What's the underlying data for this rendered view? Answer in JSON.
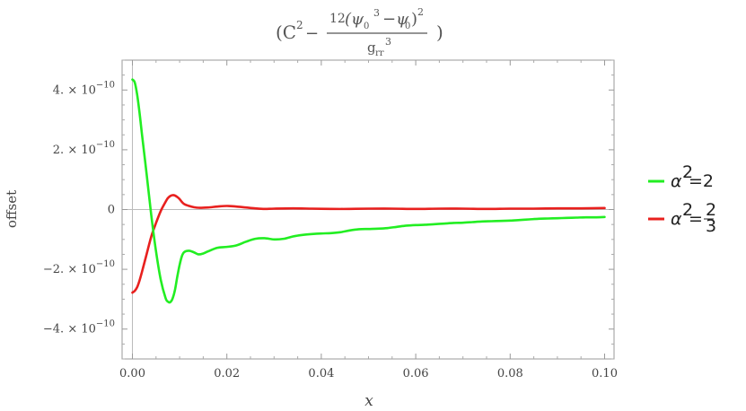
{
  "chart_data": {
    "type": "line",
    "title": {
      "open": "(C",
      "c_exp": "2",
      "minus": "−",
      "num_coef": "12",
      "num_a": "(ψ",
      "num_a_sub": "0",
      "num_a_exp": "3",
      "num_b": "−ψ",
      "num_b_sub": "0",
      "num_close": ")",
      "num_exp": "2",
      "den_base": "g",
      "den_sub": "rr",
      "den_exp": "3",
      "close": ")"
    },
    "xlabel": "x",
    "ylabel": "offset",
    "xlim": [
      0,
      0.1
    ],
    "ylim": [
      -5e-10,
      5e-10
    ],
    "x_ticks": [
      {
        "v": 0.0,
        "label": "0.00"
      },
      {
        "v": 0.02,
        "label": "0.02"
      },
      {
        "v": 0.04,
        "label": "0.04"
      },
      {
        "v": 0.06,
        "label": "0.06"
      },
      {
        "v": 0.08,
        "label": "0.08"
      },
      {
        "v": 0.1,
        "label": "0.10"
      }
    ],
    "y_ticks": [
      {
        "v": 4e-10,
        "mant": "4. × 10",
        "exp": "−10"
      },
      {
        "v": 2e-10,
        "mant": "2. × 10",
        "exp": "−10"
      },
      {
        "v": 0,
        "mant": "0",
        "exp": ""
      },
      {
        "v": -2e-10,
        "mant": "−2. × 10",
        "exp": "−10"
      },
      {
        "v": -4e-10,
        "mant": "−4. × 10",
        "exp": "−10"
      }
    ],
    "grid": false,
    "legend_position": "right",
    "series": [
      {
        "name": "α²=2",
        "legend": {
          "sym": "α",
          "exp": "2",
          "rhs": "=2"
        },
        "color": "#22ee22",
        "x": [
          0,
          0.0005,
          0.001,
          0.0015,
          0.002,
          0.003,
          0.004,
          0.005,
          0.006,
          0.007,
          0.0075,
          0.008,
          0.0085,
          0.009,
          0.0095,
          0.01,
          0.0105,
          0.011,
          0.012,
          0.013,
          0.014,
          0.015,
          0.016,
          0.018,
          0.02,
          0.022,
          0.024,
          0.026,
          0.028,
          0.03,
          0.032,
          0.034,
          0.036,
          0.038,
          0.04,
          0.042,
          0.044,
          0.046,
          0.048,
          0.05,
          0.052,
          0.054,
          0.056,
          0.058,
          0.06,
          0.062,
          0.064,
          0.066,
          0.068,
          0.07,
          0.072,
          0.074,
          0.076,
          0.078,
          0.08,
          0.082,
          0.084,
          0.086,
          0.088,
          0.09,
          0.092,
          0.094,
          0.096,
          0.098,
          0.1
        ],
        "y": [
          4.35e-10,
          4.25e-10,
          3.85e-10,
          3.25e-10,
          2.55e-10,
          1.2e-10,
          -2e-11,
          -1.4e-10,
          -2.35e-10,
          -2.95e-10,
          -3.08e-10,
          -3.1e-10,
          -2.98e-10,
          -2.7e-10,
          -2.25e-10,
          -1.85e-10,
          -1.55e-10,
          -1.42e-10,
          -1.38e-10,
          -1.43e-10,
          -1.5e-10,
          -1.47e-10,
          -1.4e-10,
          -1.28e-10,
          -1.25e-10,
          -1.2e-10,
          -1.08e-10,
          -9.8e-11,
          -9.6e-11,
          -1e-10,
          -9.8e-11,
          -9e-11,
          -8.5e-11,
          -8.2e-11,
          -8e-11,
          -7.9e-11,
          -7.6e-11,
          -7e-11,
          -6.6e-11,
          -6.5e-11,
          -6.4e-11,
          -6.2e-11,
          -5.8e-11,
          -5.4e-11,
          -5.2e-11,
          -5.1e-11,
          -4.9e-11,
          -4.7e-11,
          -4.5e-11,
          -4.4e-11,
          -4.2e-11,
          -4e-11,
          -3.9e-11,
          -3.8e-11,
          -3.7e-11,
          -3.5e-11,
          -3.3e-11,
          -3.1e-11,
          -3e-11,
          -2.9e-11,
          -2.8e-11,
          -2.7e-11,
          -2.6e-11,
          -2.6e-11,
          -2.5e-11
        ]
      },
      {
        "name": "α²=2/3",
        "legend": {
          "sym": "α",
          "exp": "2",
          "rhs": "=",
          "frac_num": "2",
          "frac_den": "3"
        },
        "color": "#e8201e",
        "x": [
          0,
          0.0005,
          0.001,
          0.0015,
          0.002,
          0.003,
          0.004,
          0.005,
          0.006,
          0.007,
          0.0075,
          0.008,
          0.0085,
          0.009,
          0.0095,
          0.01,
          0.0105,
          0.011,
          0.012,
          0.013,
          0.014,
          0.016,
          0.018,
          0.02,
          0.022,
          0.024,
          0.026,
          0.028,
          0.03,
          0.034,
          0.038,
          0.042,
          0.046,
          0.05,
          0.055,
          0.06,
          0.065,
          0.07,
          0.075,
          0.08,
          0.085,
          0.09,
          0.095,
          0.1
        ],
        "y": [
          -2.78e-10,
          -2.72e-10,
          -2.6e-10,
          -2.38e-10,
          -2.1e-10,
          -1.5e-10,
          -9e-11,
          -4.5e-11,
          -5e-12,
          2.5e-11,
          3.8e-11,
          4.5e-11,
          4.8e-11,
          4.7e-11,
          4.2e-11,
          3.5e-11,
          2.5e-11,
          1.8e-11,
          1.2e-11,
          8e-12,
          6e-12,
          7e-12,
          1e-11,
          1.2e-11,
          1e-11,
          7e-12,
          4e-12,
          2e-12,
          3e-12,
          4e-12,
          3e-12,
          2e-12,
          2e-12,
          3e-12,
          3e-12,
          2e-12,
          3e-12,
          3e-12,
          2e-12,
          3e-12,
          3e-12,
          4e-12,
          4e-12,
          5e-12
        ]
      }
    ]
  }
}
